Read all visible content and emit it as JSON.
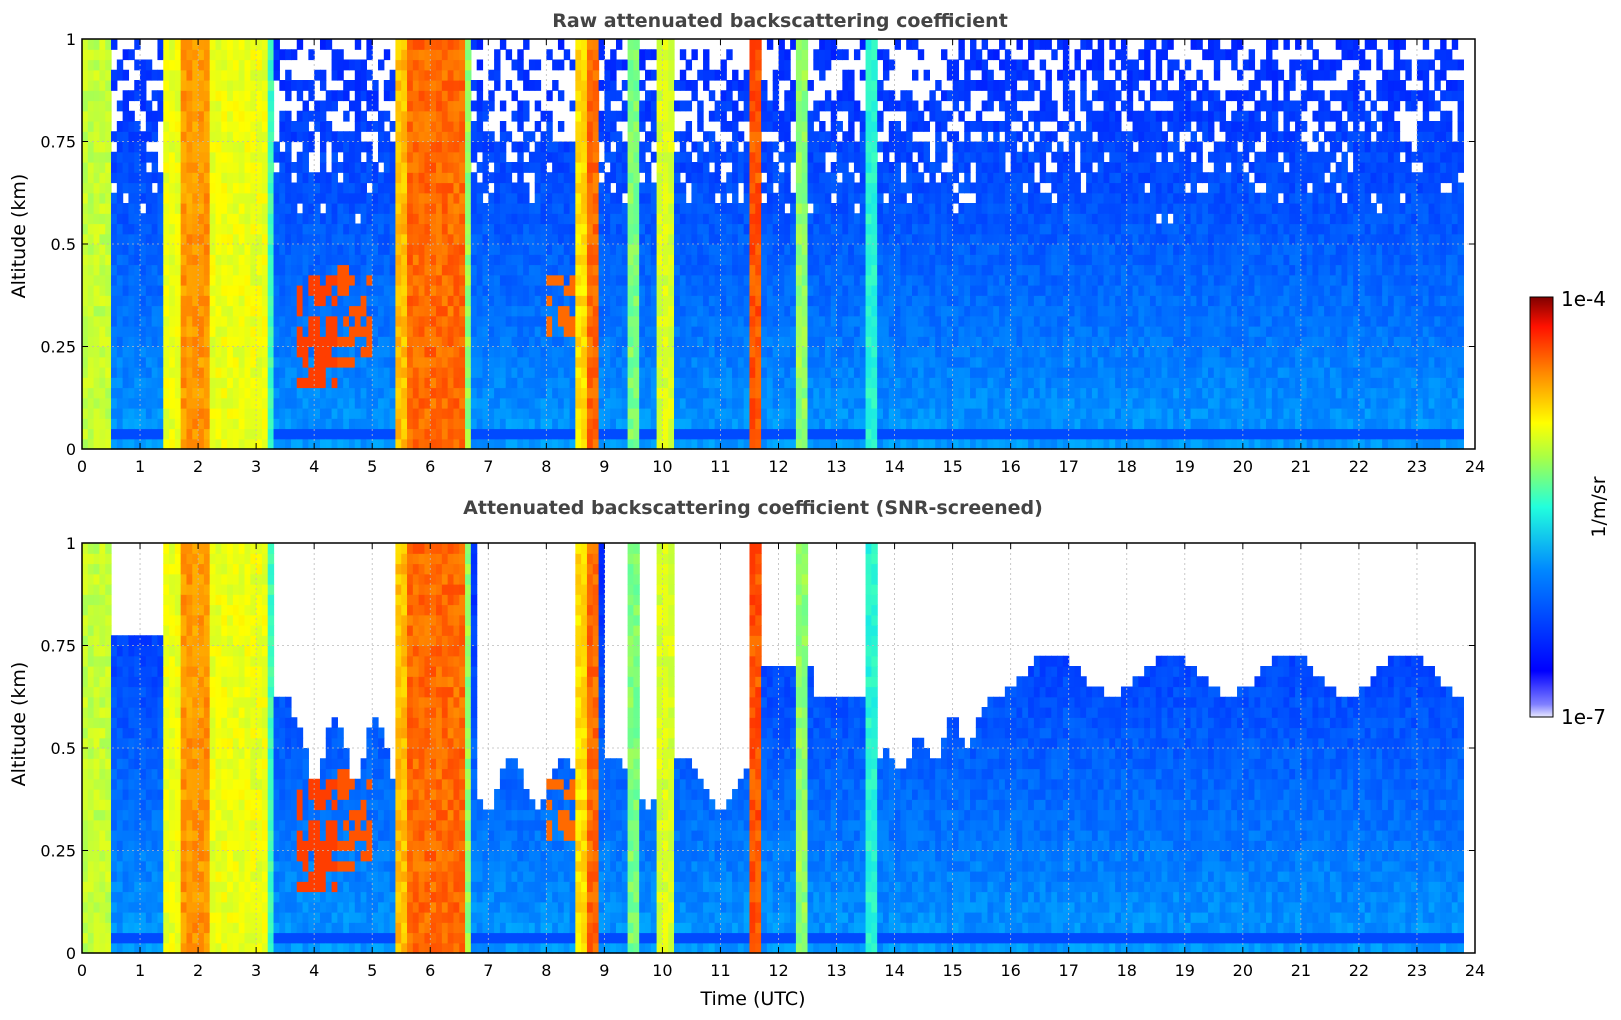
{
  "figure": {
    "xlabel": "Time (UTC)",
    "colorbar": {
      "label": "1/m/sr",
      "max_label": "1e-4",
      "min_label": "1e-7",
      "scale": "log",
      "range": [
        1e-07,
        0.0001
      ]
    }
  },
  "chart_data": [
    {
      "type": "heatmap",
      "title": "Raw attenuated backscattering coefficient",
      "xlabel": "",
      "ylabel": "Altitude (km)",
      "xlim": [
        0,
        24
      ],
      "ylim": [
        0,
        1
      ],
      "xticks": [
        "0",
        "1",
        "2",
        "3",
        "4",
        "5",
        "6",
        "7",
        "8",
        "9",
        "10",
        "11",
        "12",
        "13",
        "14",
        "15",
        "16",
        "17",
        "18",
        "19",
        "20",
        "21",
        "22",
        "23",
        "24"
      ],
      "yticks": [
        "0",
        "0.25",
        "0.5",
        "0.75",
        "1"
      ],
      "grid": true,
      "screened": false
    },
    {
      "type": "heatmap",
      "title": "Attenuated backscattering coefficient (SNR-screened)",
      "xlabel": "Time (UTC)",
      "ylabel": "Altitude (km)",
      "xlim": [
        0,
        24
      ],
      "ylim": [
        0,
        1
      ],
      "xticks": [
        "0",
        "1",
        "2",
        "3",
        "4",
        "5",
        "6",
        "7",
        "8",
        "9",
        "10",
        "11",
        "12",
        "13",
        "14",
        "15",
        "16",
        "17",
        "18",
        "19",
        "20",
        "21",
        "22",
        "23",
        "24"
      ],
      "yticks": [
        "0",
        "0.25",
        "0.5",
        "0.75",
        "1"
      ],
      "grid": true,
      "screened": true
    }
  ]
}
